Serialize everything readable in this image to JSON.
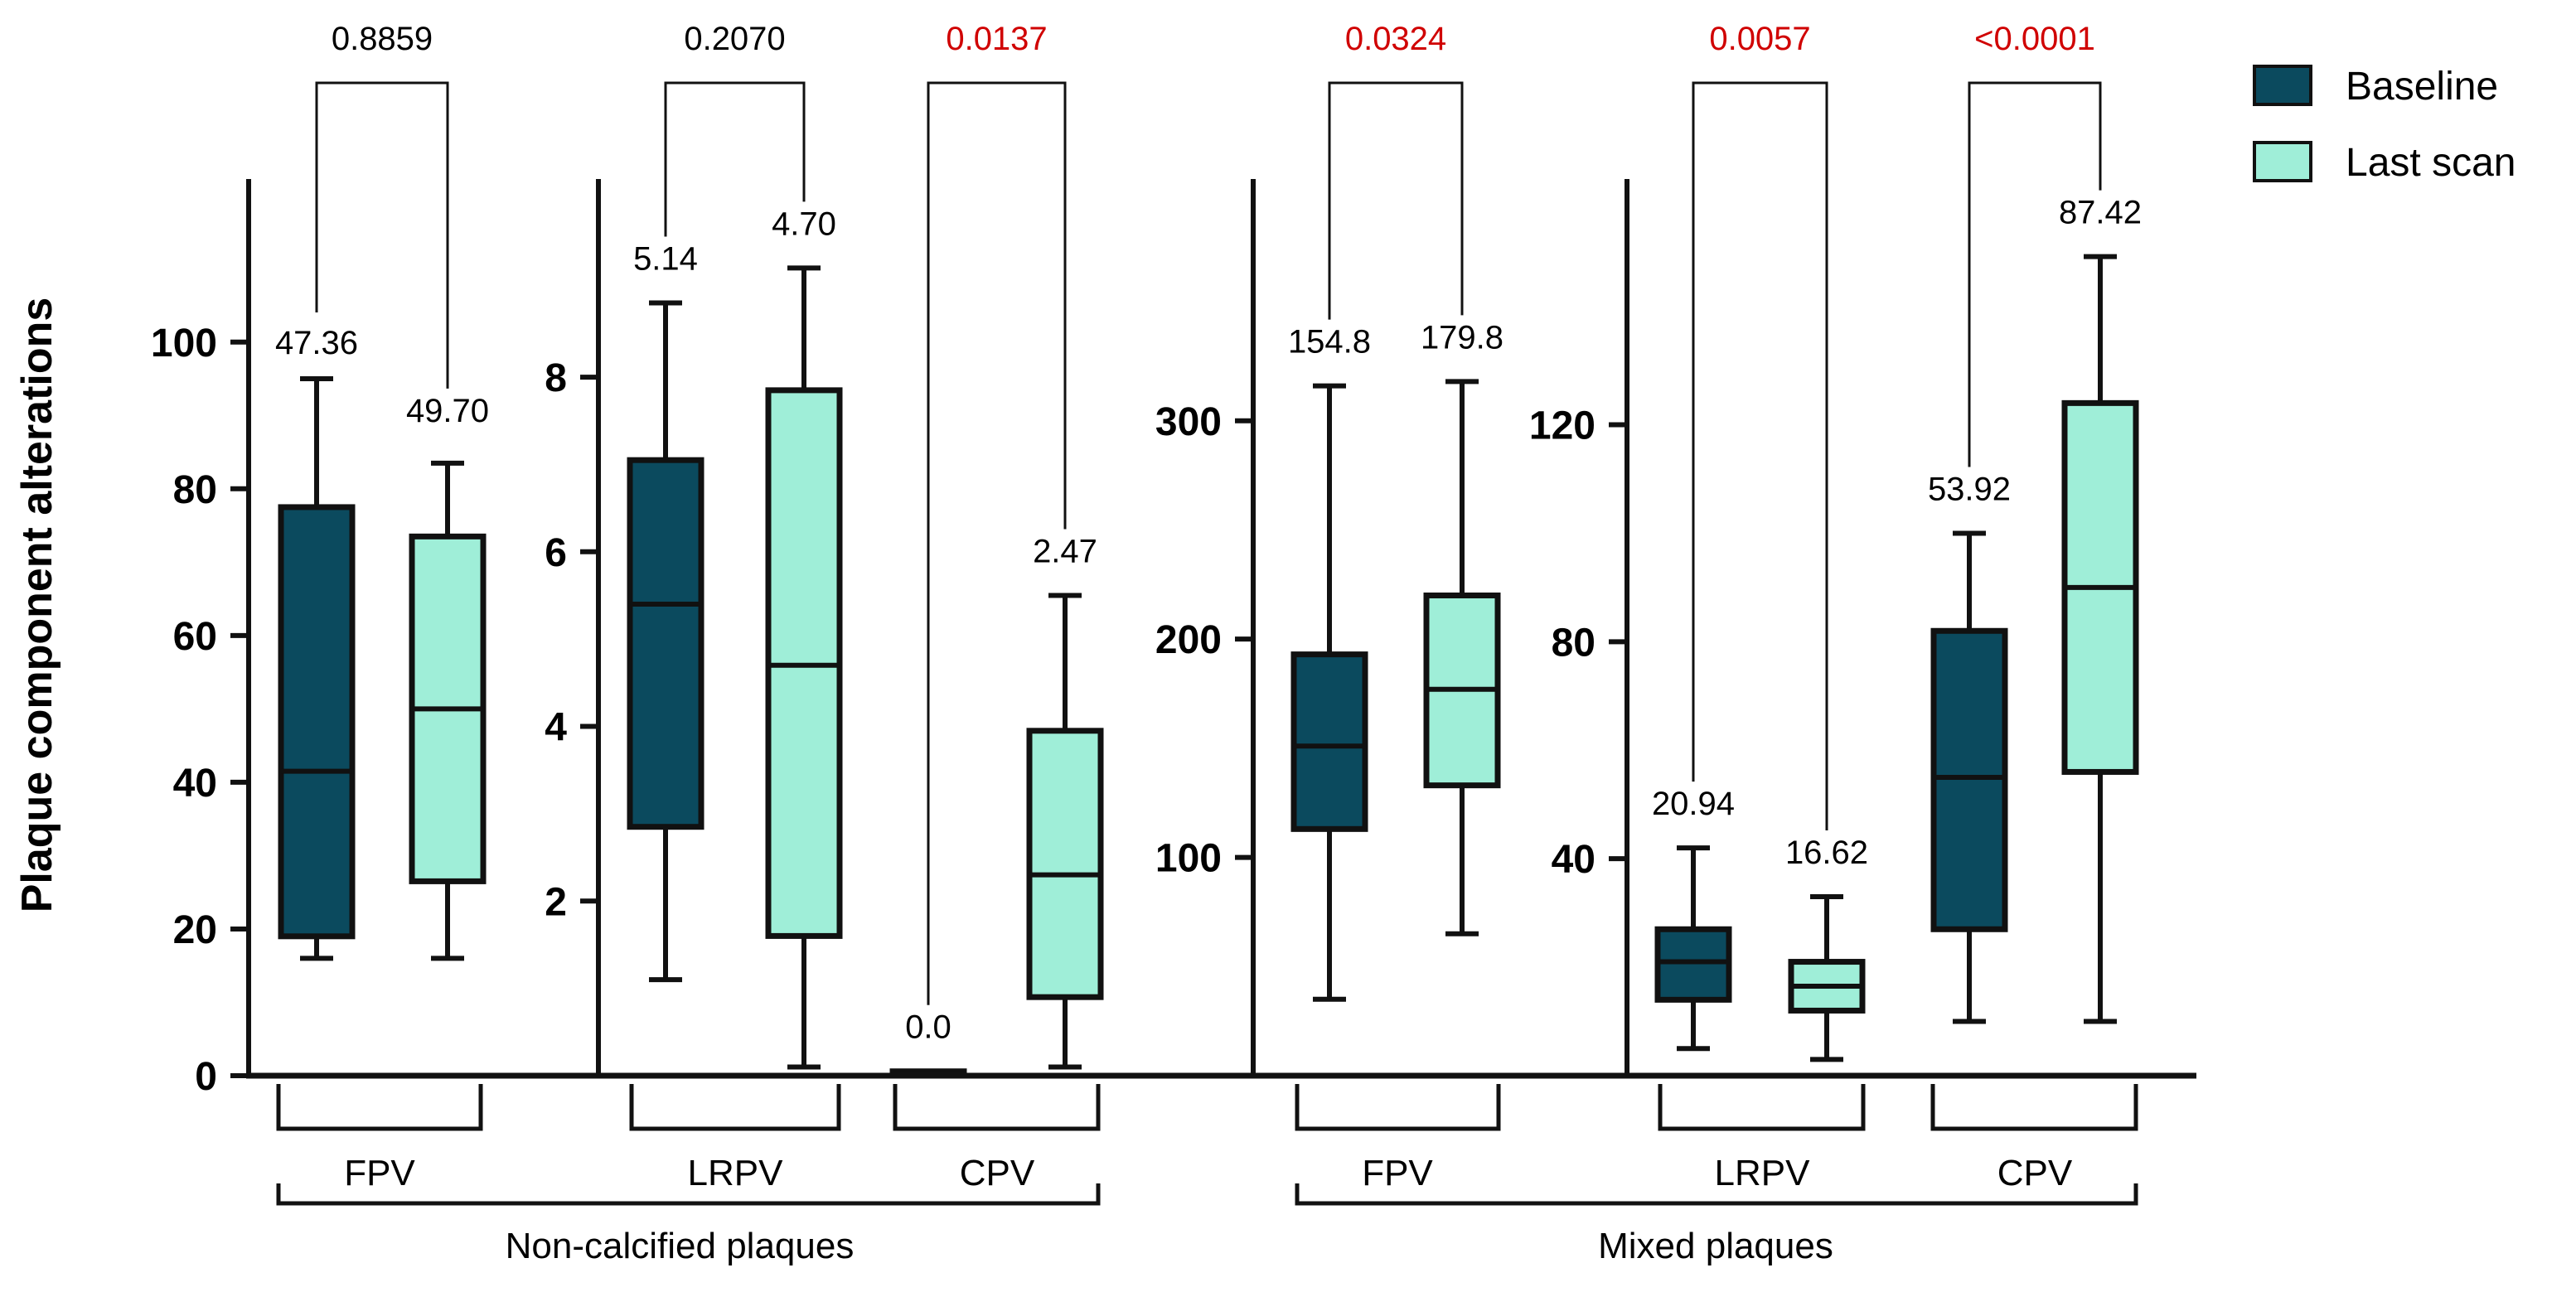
{
  "colors": {
    "baseline": "#0b4a5e",
    "last_scan": "#9feed8",
    "stroke": "#111111",
    "significant": "#d00000",
    "normal": "#000000"
  },
  "chart_data": {
    "type": "box",
    "ylabel": "Plaque component alterations",
    "legend": {
      "position": "top-right",
      "entries": [
        {
          "key": "baseline",
          "label": "Baseline"
        },
        {
          "key": "last_scan",
          "label": "Last scan"
        }
      ]
    },
    "panels": [
      {
        "id": "ncp-fpv",
        "ylim": [
          0,
          122
        ],
        "yticks": [
          "0",
          "20",
          "40",
          "60",
          "80",
          "100"
        ],
        "ytick_values": [
          0,
          20,
          40,
          60,
          80,
          100
        ],
        "boxes": [
          {
            "series": "baseline",
            "min": 16,
            "q1": 19,
            "median": 41.5,
            "q3": 77.5,
            "max": 95,
            "label": "47.36"
          },
          {
            "series": "last_scan",
            "min": 16,
            "q1": 26.5,
            "median": 50,
            "q3": 73.5,
            "max": 83.5,
            "label": "49.70"
          }
        ],
        "pvalue": "0.8859",
        "significant": false
      },
      {
        "id": "ncp-lrpv",
        "ylim": [
          0,
          10.25
        ],
        "yticks": [
          "2",
          "4",
          "6",
          "8"
        ],
        "ytick_values": [
          2,
          4,
          6,
          8
        ],
        "boxes": [
          {
            "series": "baseline",
            "min": 1.1,
            "q1": 2.85,
            "median": 5.4,
            "q3": 7.05,
            "max": 8.85,
            "label": "5.14"
          },
          {
            "series": "last_scan",
            "min": 0.1,
            "q1": 1.6,
            "median": 4.7,
            "q3": 7.85,
            "max": 9.25,
            "label": "4.70"
          }
        ],
        "pvalue": "0.2070",
        "significant": false
      },
      {
        "id": "ncp-cpv",
        "ylim": [
          0,
          10.25
        ],
        "boxes": [
          {
            "series": "baseline",
            "min": 0,
            "q1": 0,
            "median": 0.02,
            "q3": 0.05,
            "max": 0.05,
            "label": "0.0"
          },
          {
            "series": "last_scan",
            "min": 0.1,
            "q1": 0.9,
            "median": 2.3,
            "q3": 3.95,
            "max": 5.5,
            "label": "2.47"
          }
        ],
        "pvalue": "0.0137",
        "significant": true
      },
      {
        "id": "mp-fpv",
        "ylim": [
          0,
          410
        ],
        "yticks": [
          "100",
          "200",
          "300"
        ],
        "ytick_values": [
          100,
          200,
          300
        ],
        "boxes": [
          {
            "series": "baseline",
            "min": 35,
            "q1": 113,
            "median": 151,
            "q3": 193,
            "max": 316,
            "label": "154.8"
          },
          {
            "series": "last_scan",
            "min": 65,
            "q1": 133,
            "median": 177,
            "q3": 220,
            "max": 318,
            "label": "179.8"
          }
        ],
        "pvalue": "0.0324",
        "significant": true
      },
      {
        "id": "mp-lrpv",
        "ylim": [
          0,
          165
        ],
        "yticks": [
          "40",
          "80",
          "120"
        ],
        "ytick_values": [
          40,
          80,
          120
        ],
        "boxes": [
          {
            "series": "baseline",
            "min": 5,
            "q1": 14,
            "median": 21,
            "q3": 27,
            "max": 42,
            "label": "20.94"
          },
          {
            "series": "last_scan",
            "min": 3,
            "q1": 12,
            "median": 16.5,
            "q3": 21,
            "max": 33,
            "label": "16.62"
          }
        ],
        "pvalue": "0.0057",
        "significant": true
      },
      {
        "id": "mp-cpv",
        "ylim": [
          0,
          165
        ],
        "boxes": [
          {
            "series": "baseline",
            "min": 10,
            "q1": 27,
            "median": 55,
            "q3": 82,
            "max": 100,
            "label": "53.92"
          },
          {
            "series": "last_scan",
            "min": 10,
            "q1": 56,
            "median": 90,
            "q3": 124,
            "max": 151,
            "label": "87.42"
          }
        ],
        "pvalue": "<0.0001",
        "significant": true
      }
    ],
    "groups": [
      {
        "label": "Non-calcified plaques",
        "subgroups": [
          "FPV",
          "LRPV",
          "CPV"
        ]
      },
      {
        "label": "Mixed plaques",
        "subgroups": [
          "FPV",
          "LRPV",
          "CPV"
        ]
      }
    ]
  }
}
